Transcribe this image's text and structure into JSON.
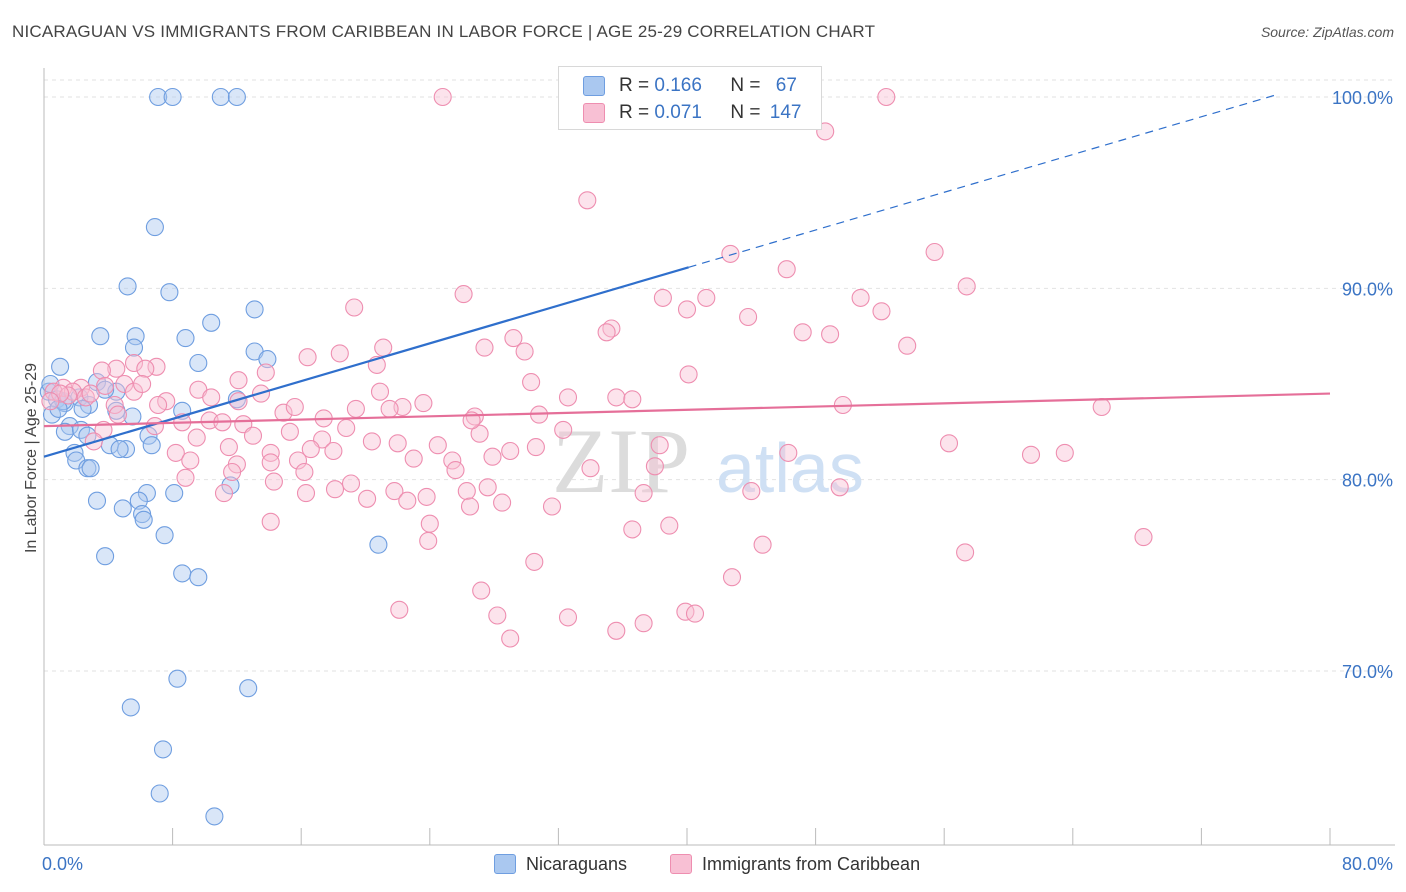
{
  "title": "NICARAGUAN VS IMMIGRANTS FROM CARIBBEAN IN LABOR FORCE | AGE 25-29 CORRELATION CHART",
  "source": "Source: ZipAtlas.com",
  "legend_top": {
    "r_label": "R =",
    "n_label": "N =",
    "rows": [
      {
        "r": "0.166",
        "n": "67",
        "color": "#aac8f0",
        "border": "#6f9ee0"
      },
      {
        "r": "0.071",
        "n": "147",
        "color": "#f8c0d4",
        "border": "#ee8eb0"
      }
    ]
  },
  "legend_bottom": [
    "Nicaraguans",
    "Immigrants from Caribbean"
  ],
  "watermark": {
    "zip": "ZIP",
    "atlas": "atlas"
  },
  "chart_data": {
    "type": "scatter",
    "ylabel": "In Labor Force | Age 25-29",
    "xlabel": "",
    "x_tick_labels": [
      "0.0%",
      "80.0%"
    ],
    "y_tick_labels": [
      "100.0%",
      "90.0%",
      "80.0%",
      "70.0%"
    ],
    "xlim": [
      0,
      80
    ],
    "ylim": [
      60.4,
      102.1
    ],
    "y_gridlines": [
      100,
      90,
      80,
      70
    ],
    "grid": true,
    "series": [
      {
        "name": "Nicaraguans",
        "color": "#aac8f0",
        "stroke": "#6f9ee0",
        "trend": {
          "x0": 0,
          "y0": 81.2,
          "x1": 40.1,
          "y1": 91.1,
          "dash_x1": 76.6,
          "dash_y1": 100.1,
          "color": "#2f6fcc"
        },
        "points": [
          [
            7.1,
            100
          ],
          [
            8.0,
            100
          ],
          [
            11.0,
            100
          ],
          [
            12.0,
            100
          ],
          [
            32.9,
            100
          ],
          [
            6.9,
            93.2
          ],
          [
            5.2,
            90.1
          ],
          [
            7.8,
            89.8
          ],
          [
            13.1,
            88.9
          ],
          [
            10.4,
            88.2
          ],
          [
            3.5,
            87.5
          ],
          [
            8.8,
            87.4
          ],
          [
            5.7,
            87.5
          ],
          [
            5.6,
            86.9
          ],
          [
            13.1,
            86.7
          ],
          [
            9.6,
            86.1
          ],
          [
            13.9,
            86.3
          ],
          [
            1.0,
            85.9
          ],
          [
            3.3,
            85.1
          ],
          [
            4.5,
            84.6
          ],
          [
            0.3,
            84.6
          ],
          [
            0.8,
            84.2
          ],
          [
            1.3,
            84.0
          ],
          [
            2.2,
            84.3
          ],
          [
            2.8,
            83.9
          ],
          [
            8.6,
            83.6
          ],
          [
            4.5,
            83.6
          ],
          [
            5.5,
            83.3
          ],
          [
            12.0,
            84.2
          ],
          [
            0.5,
            83.4
          ],
          [
            1.6,
            82.8
          ],
          [
            1.3,
            82.5
          ],
          [
            2.3,
            82.6
          ],
          [
            2.7,
            82.3
          ],
          [
            6.5,
            82.3
          ],
          [
            4.1,
            81.8
          ],
          [
            6.7,
            81.8
          ],
          [
            1.9,
            81.4
          ],
          [
            5.1,
            81.6
          ],
          [
            4.7,
            81.6
          ],
          [
            2.0,
            81.0
          ],
          [
            2.7,
            80.6
          ],
          [
            2.9,
            80.6
          ],
          [
            11.6,
            79.7
          ],
          [
            6.4,
            79.3
          ],
          [
            8.1,
            79.3
          ],
          [
            3.3,
            78.9
          ],
          [
            5.9,
            78.9
          ],
          [
            4.9,
            78.5
          ],
          [
            6.1,
            78.2
          ],
          [
            6.2,
            77.9
          ],
          [
            7.5,
            77.1
          ],
          [
            20.8,
            76.6
          ],
          [
            3.8,
            76.0
          ],
          [
            8.6,
            75.1
          ],
          [
            9.6,
            74.9
          ],
          [
            8.3,
            69.6
          ],
          [
            12.7,
            69.1
          ],
          [
            5.4,
            68.1
          ],
          [
            7.4,
            65.9
          ],
          [
            7.2,
            63.6
          ],
          [
            10.6,
            62.4
          ],
          [
            1.2,
            84.1
          ],
          [
            0.9,
            83.7
          ],
          [
            2.4,
            83.7
          ],
          [
            3.8,
            84.7
          ],
          [
            0.4,
            85.0
          ]
        ]
      },
      {
        "name": "Immigrants from Caribbean",
        "color": "#f8c0d4",
        "stroke": "#ee8eb0",
        "trend": {
          "x0": 0,
          "y0": 82.8,
          "x1": 80,
          "y1": 84.5,
          "color": "#e56f99"
        },
        "points": [
          [
            24.8,
            100
          ],
          [
            52.4,
            100
          ],
          [
            48.6,
            98.2
          ],
          [
            33.8,
            94.6
          ],
          [
            42.7,
            91.8
          ],
          [
            55.4,
            91.9
          ],
          [
            46.2,
            91.0
          ],
          [
            26.1,
            89.7
          ],
          [
            38.5,
            89.5
          ],
          [
            41.2,
            89.5
          ],
          [
            50.8,
            89.5
          ],
          [
            57.4,
            90.1
          ],
          [
            40.0,
            88.9
          ],
          [
            43.8,
            88.5
          ],
          [
            52.1,
            88.8
          ],
          [
            19.3,
            89.0
          ],
          [
            35.3,
            87.9
          ],
          [
            35.0,
            87.7
          ],
          [
            47.2,
            87.7
          ],
          [
            48.9,
            87.6
          ],
          [
            29.2,
            87.4
          ],
          [
            27.4,
            86.9
          ],
          [
            21.1,
            86.9
          ],
          [
            29.9,
            86.7
          ],
          [
            18.4,
            86.6
          ],
          [
            16.4,
            86.4
          ],
          [
            53.7,
            87.0
          ],
          [
            20.7,
            86.0
          ],
          [
            5.6,
            86.1
          ],
          [
            7.0,
            85.9
          ],
          [
            6.3,
            85.8
          ],
          [
            4.5,
            85.8
          ],
          [
            3.6,
            85.7
          ],
          [
            13.8,
            85.6
          ],
          [
            40.1,
            85.5
          ],
          [
            12.1,
            85.2
          ],
          [
            5.0,
            85.0
          ],
          [
            30.3,
            85.1
          ],
          [
            3.8,
            84.9
          ],
          [
            2.3,
            84.8
          ],
          [
            1.2,
            84.8
          ],
          [
            0.6,
            84.6
          ],
          [
            5.6,
            84.6
          ],
          [
            9.6,
            84.7
          ],
          [
            13.5,
            84.5
          ],
          [
            20.9,
            84.6
          ],
          [
            1.8,
            84.6
          ],
          [
            1.5,
            84.4
          ],
          [
            2.6,
            84.3
          ],
          [
            32.6,
            84.3
          ],
          [
            35.6,
            84.3
          ],
          [
            36.6,
            84.2
          ],
          [
            12.1,
            84.1
          ],
          [
            7.6,
            84.1
          ],
          [
            4.4,
            83.9
          ],
          [
            7.1,
            83.9
          ],
          [
            23.6,
            84.0
          ],
          [
            22.3,
            83.8
          ],
          [
            21.5,
            83.7
          ],
          [
            19.4,
            83.7
          ],
          [
            49.7,
            83.9
          ],
          [
            65.8,
            83.8
          ],
          [
            14.9,
            83.5
          ],
          [
            26.8,
            83.3
          ],
          [
            30.8,
            83.4
          ],
          [
            17.4,
            83.2
          ],
          [
            10.3,
            83.1
          ],
          [
            11.1,
            83.0
          ],
          [
            12.4,
            82.9
          ],
          [
            8.6,
            83.0
          ],
          [
            6.9,
            82.8
          ],
          [
            3.7,
            82.6
          ],
          [
            15.3,
            82.5
          ],
          [
            27.1,
            82.4
          ],
          [
            32.3,
            82.6
          ],
          [
            9.5,
            82.2
          ],
          [
            17.3,
            82.1
          ],
          [
            22.0,
            81.9
          ],
          [
            14.1,
            81.4
          ],
          [
            8.2,
            81.4
          ],
          [
            16.6,
            81.6
          ],
          [
            11.5,
            81.7
          ],
          [
            18.0,
            81.5
          ],
          [
            24.5,
            81.8
          ],
          [
            38.3,
            81.8
          ],
          [
            30.6,
            81.7
          ],
          [
            29.0,
            81.5
          ],
          [
            56.3,
            81.9
          ],
          [
            46.3,
            81.4
          ],
          [
            61.4,
            81.3
          ],
          [
            63.5,
            81.4
          ],
          [
            14.1,
            80.9
          ],
          [
            23.0,
            81.1
          ],
          [
            25.4,
            81.0
          ],
          [
            15.8,
            81.0
          ],
          [
            27.9,
            81.2
          ],
          [
            12.0,
            80.8
          ],
          [
            16.2,
            80.4
          ],
          [
            11.7,
            80.4
          ],
          [
            8.8,
            80.1
          ],
          [
            19.1,
            79.8
          ],
          [
            27.6,
            79.6
          ],
          [
            37.3,
            79.3
          ],
          [
            49.5,
            79.6
          ],
          [
            18.1,
            79.5
          ],
          [
            26.3,
            79.4
          ],
          [
            11.2,
            79.3
          ],
          [
            16.3,
            79.3
          ],
          [
            21.8,
            79.4
          ],
          [
            14.3,
            79.9
          ],
          [
            23.8,
            79.1
          ],
          [
            22.6,
            78.9
          ],
          [
            20.1,
            79.0
          ],
          [
            26.5,
            78.6
          ],
          [
            28.5,
            78.8
          ],
          [
            31.6,
            78.6
          ],
          [
            24.0,
            77.7
          ],
          [
            14.1,
            77.8
          ],
          [
            36.6,
            77.4
          ],
          [
            38.9,
            77.6
          ],
          [
            23.9,
            76.8
          ],
          [
            44.7,
            76.6
          ],
          [
            57.3,
            76.2
          ],
          [
            68.4,
            77.0
          ],
          [
            30.5,
            75.7
          ],
          [
            42.8,
            74.9
          ],
          [
            27.2,
            74.2
          ],
          [
            22.1,
            73.2
          ],
          [
            28.2,
            72.9
          ],
          [
            39.9,
            73.1
          ],
          [
            40.5,
            73.0
          ],
          [
            37.3,
            72.5
          ],
          [
            35.6,
            72.1
          ],
          [
            29.0,
            71.7
          ],
          [
            32.6,
            72.8
          ],
          [
            1.0,
            84.5
          ],
          [
            0.4,
            84.1
          ],
          [
            2.9,
            84.5
          ],
          [
            4.6,
            83.4
          ],
          [
            10.4,
            84.3
          ],
          [
            9.1,
            81.0
          ],
          [
            25.6,
            80.5
          ],
          [
            38.0,
            80.7
          ],
          [
            3.1,
            82.0
          ],
          [
            13.0,
            82.3
          ],
          [
            18.8,
            82.7
          ],
          [
            6.1,
            85.0
          ],
          [
            15.6,
            83.8
          ],
          [
            20.4,
            82.0
          ],
          [
            34.0,
            80.6
          ],
          [
            44.0,
            79.4
          ],
          [
            26.6,
            83.1
          ]
        ]
      }
    ]
  }
}
